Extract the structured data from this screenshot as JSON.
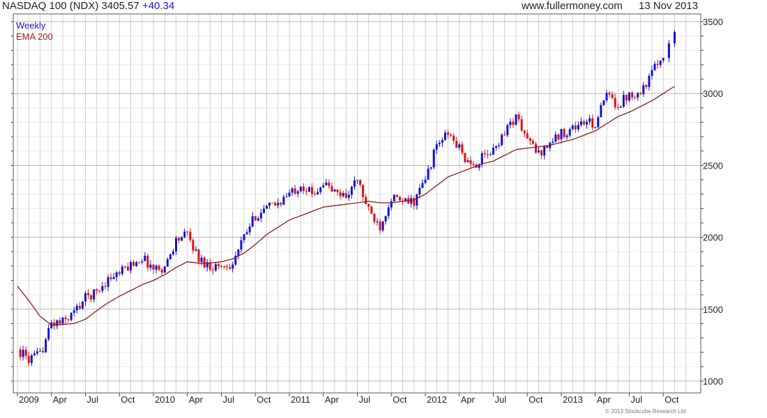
{
  "header": {
    "title": "NASDAQ 100 (NDX) 3405.57",
    "change": "+40.34",
    "website": "www.fullermoney.com",
    "date": "13 Nov 2013"
  },
  "legend": {
    "weekly": "Weekly",
    "ema": "EMA 200"
  },
  "credit": "© 2013 Stockcube Research Ltd",
  "colors": {
    "up": "#1010d8",
    "down": "#e01010",
    "ema": "#8b1a1a",
    "grid": "#cfcfcf"
  },
  "chart_data": {
    "type": "candlestick",
    "title": "NASDAQ 100 (NDX) 3405.57",
    "ylim": [
      1000,
      3500
    ],
    "yticks": [
      1000,
      1500,
      2000,
      2500,
      3000,
      3500
    ],
    "x_tick_labels": [
      "2009",
      "Apr",
      "Jul",
      "Oct",
      "2010",
      "Apr",
      "Jul",
      "Oct",
      "2011",
      "Apr",
      "Jul",
      "Oct",
      "2012",
      "Apr",
      "Jul",
      "Oct",
      "2013",
      "Apr",
      "Jul",
      "Oct"
    ],
    "grid": true,
    "legend_position": "top-left",
    "series": [
      {
        "name": "Weekly",
        "kind": "candlestick",
        "x": [
          "2009-01",
          "2009-02",
          "2009-03",
          "2009-04",
          "2009-05",
          "2009-06",
          "2009-07",
          "2009-08",
          "2009-09",
          "2009-10",
          "2009-11",
          "2009-12",
          "2010-01",
          "2010-02",
          "2010-03",
          "2010-04",
          "2010-05",
          "2010-06",
          "2010-07",
          "2010-08",
          "2010-09",
          "2010-10",
          "2010-11",
          "2010-12",
          "2011-01",
          "2011-02",
          "2011-03",
          "2011-04",
          "2011-05",
          "2011-06",
          "2011-07",
          "2011-08",
          "2011-09",
          "2011-10",
          "2011-11",
          "2011-12",
          "2012-01",
          "2012-02",
          "2012-03",
          "2012-04",
          "2012-05",
          "2012-06",
          "2012-07",
          "2012-08",
          "2012-09",
          "2012-10",
          "2012-11",
          "2012-12",
          "2013-01",
          "2013-02",
          "2013-03",
          "2013-04",
          "2013-05",
          "2013-06",
          "2013-07",
          "2013-08",
          "2013-09",
          "2013-10",
          "2013-11"
        ],
        "close": [
          1220,
          1150,
          1180,
          1400,
          1410,
          1480,
          1580,
          1620,
          1710,
          1750,
          1810,
          1860,
          1780,
          1790,
          1980,
          2020,
          1850,
          1800,
          1800,
          1820,
          2000,
          2150,
          2200,
          2240,
          2300,
          2370,
          2300,
          2380,
          2310,
          2290,
          2400,
          2180,
          2080,
          2280,
          2240,
          2250,
          2400,
          2640,
          2720,
          2620,
          2480,
          2550,
          2600,
          2740,
          2840,
          2680,
          2580,
          2660,
          2720,
          2760,
          2800,
          2790,
          2990,
          2920,
          3000,
          3010,
          3140,
          3280,
          3405.57
        ]
      },
      {
        "name": "EMA 200",
        "kind": "line",
        "x": [
          "2009-01",
          "2009-02",
          "2009-03",
          "2009-04",
          "2009-05",
          "2009-06",
          "2009-07",
          "2009-08",
          "2009-09",
          "2009-10",
          "2009-11",
          "2009-12",
          "2010-01",
          "2010-02",
          "2010-03",
          "2010-04",
          "2010-05",
          "2010-06",
          "2010-07",
          "2010-08",
          "2010-09",
          "2010-10",
          "2010-11",
          "2010-12",
          "2011-01",
          "2011-02",
          "2011-03",
          "2011-04",
          "2011-05",
          "2011-06",
          "2011-07",
          "2011-08",
          "2011-09",
          "2011-10",
          "2011-11",
          "2011-12",
          "2012-01",
          "2012-02",
          "2012-03",
          "2012-04",
          "2012-05",
          "2012-06",
          "2012-07",
          "2012-08",
          "2012-09",
          "2012-10",
          "2012-11",
          "2012-12",
          "2013-01",
          "2013-02",
          "2013-03",
          "2013-04",
          "2013-05",
          "2013-06",
          "2013-07",
          "2013-08",
          "2013-09",
          "2013-10",
          "2013-11"
        ],
        "values": [
          1660,
          1560,
          1450,
          1390,
          1395,
          1400,
          1430,
          1490,
          1545,
          1590,
          1630,
          1670,
          1700,
          1740,
          1790,
          1830,
          1820,
          1820,
          1830,
          1850,
          1890,
          1950,
          2020,
          2070,
          2120,
          2150,
          2180,
          2210,
          2220,
          2230,
          2240,
          2250,
          2240,
          2240,
          2250,
          2260,
          2300,
          2360,
          2420,
          2450,
          2480,
          2510,
          2530,
          2570,
          2610,
          2620,
          2630,
          2640,
          2660,
          2680,
          2710,
          2740,
          2790,
          2840,
          2870,
          2910,
          2950,
          3000,
          3050
        ]
      }
    ]
  }
}
